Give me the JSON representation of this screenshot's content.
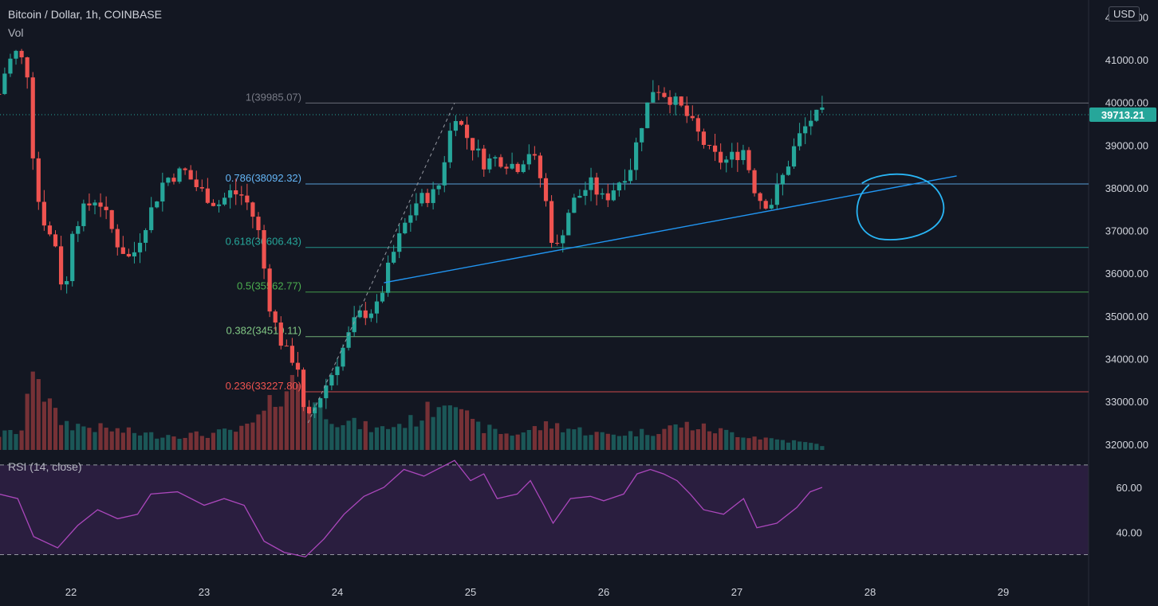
{
  "header": {
    "title": "Bitcoin / Dollar, 1h, COINBASE",
    "vol_label": "Vol",
    "rsi_label": "RSI (14, close)",
    "currency": "USD",
    "last_price": "39713.21"
  },
  "colors": {
    "background": "#131722",
    "up": "#26a69a",
    "down": "#ef5350",
    "rsi_line": "#ab47bc",
    "rsi_band": "#2a1e3f",
    "trendline": "#2196f3",
    "circle": "#29b6f6",
    "axis_text": "#d1d4dc"
  },
  "chart_data": [
    {
      "type": "candlestick",
      "title": "Bitcoin / Dollar, 1h, COINBASE",
      "x_axis": {
        "ticks": [
          "22",
          "23",
          "24",
          "25",
          "26",
          "27",
          "28",
          "29"
        ],
        "range": [
          21.46,
          29.6
        ]
      },
      "y_axis": {
        "ticks": [
          "42000.00",
          "41000.00",
          "40000.00",
          "39000.00",
          "38000.00",
          "37000.00",
          "36000.00",
          "35000.00",
          "34000.00",
          "33000.00",
          "32000.00"
        ],
        "range": [
          31900,
          42250
        ]
      },
      "grid": false,
      "last_price": 39713.21,
      "anchor_points": [
        {
          "t": 21.46,
          "p": 40200
        },
        {
          "t": 21.52,
          "p": 40900
        },
        {
          "t": 21.6,
          "p": 41200
        },
        {
          "t": 21.7,
          "p": 40500
        },
        {
          "t": 21.72,
          "p": 38100
        },
        {
          "t": 21.82,
          "p": 37000
        },
        {
          "t": 21.9,
          "p": 36600
        },
        {
          "t": 21.95,
          "p": 35100
        },
        {
          "t": 22.0,
          "p": 37000
        },
        {
          "t": 22.1,
          "p": 37500
        },
        {
          "t": 22.2,
          "p": 37800
        },
        {
          "t": 22.35,
          "p": 36700
        },
        {
          "t": 22.45,
          "p": 36300
        },
        {
          "t": 22.55,
          "p": 37100
        },
        {
          "t": 22.7,
          "p": 38200
        },
        {
          "t": 22.85,
          "p": 38400
        },
        {
          "t": 22.95,
          "p": 38000
        },
        {
          "t": 23.1,
          "p": 37600
        },
        {
          "t": 23.2,
          "p": 37900
        },
        {
          "t": 23.3,
          "p": 37800
        },
        {
          "t": 23.4,
          "p": 37100
        },
        {
          "t": 23.5,
          "p": 35100
        },
        {
          "t": 23.6,
          "p": 34200
        },
        {
          "t": 23.7,
          "p": 33900
        },
        {
          "t": 23.76,
          "p": 32400
        },
        {
          "t": 23.85,
          "p": 33000
        },
        {
          "t": 23.95,
          "p": 33600
        },
        {
          "t": 24.05,
          "p": 34300
        },
        {
          "t": 24.15,
          "p": 35000
        },
        {
          "t": 24.3,
          "p": 35200
        },
        {
          "t": 24.4,
          "p": 36300
        },
        {
          "t": 24.5,
          "p": 37100
        },
        {
          "t": 24.6,
          "p": 37700
        },
        {
          "t": 24.75,
          "p": 37900
        },
        {
          "t": 24.88,
          "p": 39800
        },
        {
          "t": 24.95,
          "p": 39300
        },
        {
          "t": 25.1,
          "p": 38600
        },
        {
          "t": 25.2,
          "p": 38700
        },
        {
          "t": 25.35,
          "p": 38500
        },
        {
          "t": 25.45,
          "p": 38900
        },
        {
          "t": 25.55,
          "p": 38000
        },
        {
          "t": 25.6,
          "p": 36900
        },
        {
          "t": 25.65,
          "p": 36600
        },
        {
          "t": 25.75,
          "p": 37600
        },
        {
          "t": 25.9,
          "p": 38100
        },
        {
          "t": 26.0,
          "p": 37700
        },
        {
          "t": 26.1,
          "p": 38100
        },
        {
          "t": 26.2,
          "p": 38500
        },
        {
          "t": 26.3,
          "p": 39700
        },
        {
          "t": 26.38,
          "p": 40400
        },
        {
          "t": 26.5,
          "p": 40100
        },
        {
          "t": 26.6,
          "p": 39800
        },
        {
          "t": 26.7,
          "p": 39300
        },
        {
          "t": 26.8,
          "p": 38800
        },
        {
          "t": 26.9,
          "p": 38600
        },
        {
          "t": 27.05,
          "p": 38900
        },
        {
          "t": 27.15,
          "p": 37800
        },
        {
          "t": 27.25,
          "p": 37600
        },
        {
          "t": 27.35,
          "p": 38300
        },
        {
          "t": 27.45,
          "p": 39100
        },
        {
          "t": 27.55,
          "p": 39600
        },
        {
          "t": 27.64,
          "p": 39713.21
        }
      ],
      "volume_profile": [
        {
          "t": 21.46,
          "v": 0.15
        },
        {
          "t": 21.65,
          "v": 0.2
        },
        {
          "t": 21.72,
          "v": 1.0
        },
        {
          "t": 21.8,
          "v": 0.55
        },
        {
          "t": 21.9,
          "v": 0.3
        },
        {
          "t": 22.0,
          "v": 0.25
        },
        {
          "t": 22.3,
          "v": 0.2
        },
        {
          "t": 22.6,
          "v": 0.15
        },
        {
          "t": 23.0,
          "v": 0.15
        },
        {
          "t": 23.3,
          "v": 0.2
        },
        {
          "t": 23.45,
          "v": 0.35
        },
        {
          "t": 23.55,
          "v": 0.55
        },
        {
          "t": 23.7,
          "v": 0.7
        },
        {
          "t": 23.8,
          "v": 0.5
        },
        {
          "t": 24.0,
          "v": 0.3
        },
        {
          "t": 24.3,
          "v": 0.2
        },
        {
          "t": 24.6,
          "v": 0.3
        },
        {
          "t": 24.88,
          "v": 0.6
        },
        {
          "t": 25.0,
          "v": 0.25
        },
        {
          "t": 25.3,
          "v": 0.15
        },
        {
          "t": 25.6,
          "v": 0.25
        },
        {
          "t": 25.8,
          "v": 0.2
        },
        {
          "t": 26.0,
          "v": 0.15
        },
        {
          "t": 26.35,
          "v": 0.18
        },
        {
          "t": 26.6,
          "v": 0.25
        },
        {
          "t": 26.9,
          "v": 0.18
        },
        {
          "t": 27.2,
          "v": 0.12
        },
        {
          "t": 27.64,
          "v": 0.05
        }
      ]
    },
    {
      "type": "line",
      "title": "RSI (14, close)",
      "y_axis": {
        "ticks": [
          "60.00",
          "40.00"
        ],
        "range": [
          20,
          78
        ]
      },
      "bands": [
        30,
        70
      ],
      "points": [
        {
          "t": 21.46,
          "v": 57
        },
        {
          "t": 21.6,
          "v": 55
        },
        {
          "t": 21.72,
          "v": 38
        },
        {
          "t": 21.9,
          "v": 33
        },
        {
          "t": 22.05,
          "v": 43
        },
        {
          "t": 22.2,
          "v": 50
        },
        {
          "t": 22.35,
          "v": 46
        },
        {
          "t": 22.5,
          "v": 48
        },
        {
          "t": 22.6,
          "v": 57
        },
        {
          "t": 22.8,
          "v": 58
        },
        {
          "t": 23.0,
          "v": 52
        },
        {
          "t": 23.15,
          "v": 55
        },
        {
          "t": 23.3,
          "v": 52
        },
        {
          "t": 23.45,
          "v": 36
        },
        {
          "t": 23.6,
          "v": 31
        },
        {
          "t": 23.76,
          "v": 29
        },
        {
          "t": 23.9,
          "v": 37
        },
        {
          "t": 24.05,
          "v": 48
        },
        {
          "t": 24.2,
          "v": 56
        },
        {
          "t": 24.35,
          "v": 60
        },
        {
          "t": 24.5,
          "v": 68
        },
        {
          "t": 24.65,
          "v": 65
        },
        {
          "t": 24.88,
          "v": 72
        },
        {
          "t": 25.0,
          "v": 63
        },
        {
          "t": 25.1,
          "v": 66
        },
        {
          "t": 25.2,
          "v": 55
        },
        {
          "t": 25.35,
          "v": 57
        },
        {
          "t": 25.45,
          "v": 63
        },
        {
          "t": 25.55,
          "v": 52
        },
        {
          "t": 25.62,
          "v": 44
        },
        {
          "t": 25.75,
          "v": 55
        },
        {
          "t": 25.9,
          "v": 56
        },
        {
          "t": 26.0,
          "v": 54
        },
        {
          "t": 26.15,
          "v": 57
        },
        {
          "t": 26.25,
          "v": 66
        },
        {
          "t": 26.35,
          "v": 68
        },
        {
          "t": 26.45,
          "v": 66
        },
        {
          "t": 26.55,
          "v": 63
        },
        {
          "t": 26.65,
          "v": 57
        },
        {
          "t": 26.75,
          "v": 50
        },
        {
          "t": 26.9,
          "v": 48
        },
        {
          "t": 27.05,
          "v": 55
        },
        {
          "t": 27.15,
          "v": 42
        },
        {
          "t": 27.3,
          "v": 44
        },
        {
          "t": 27.45,
          "v": 51
        },
        {
          "t": 27.55,
          "v": 58
        },
        {
          "t": 27.64,
          "v": 60
        }
      ]
    }
  ],
  "fib_levels": [
    {
      "label": "1(39985.07)",
      "price": 39985.07,
      "color": "#787b86"
    },
    {
      "label": "0.786(38092.32)",
      "price": 38092.32,
      "color": "#64b5f6"
    },
    {
      "label": "0.618(36606.43)",
      "price": 36606.43,
      "color": "#26a69a"
    },
    {
      "label": "0.5(35562.77)",
      "price": 35562.77,
      "color": "#4caf50"
    },
    {
      "label": "0.382(34519.11)",
      "price": 34519.11,
      "color": "#81c784"
    },
    {
      "label": "0.236(33227.80)",
      "price": 33227.8,
      "color": "#ef5350"
    }
  ],
  "trendline": {
    "start": {
      "t": 24.35,
      "p": 35780
    },
    "end": {
      "t": 28.65,
      "p": 38280
    }
  },
  "fib_diagonal": {
    "start": {
      "t": 23.78,
      "p": 32500
    },
    "end": {
      "t": 24.88,
      "p": 39985.07
    }
  },
  "circle": {
    "t": 28.22,
    "p": 37550
  }
}
